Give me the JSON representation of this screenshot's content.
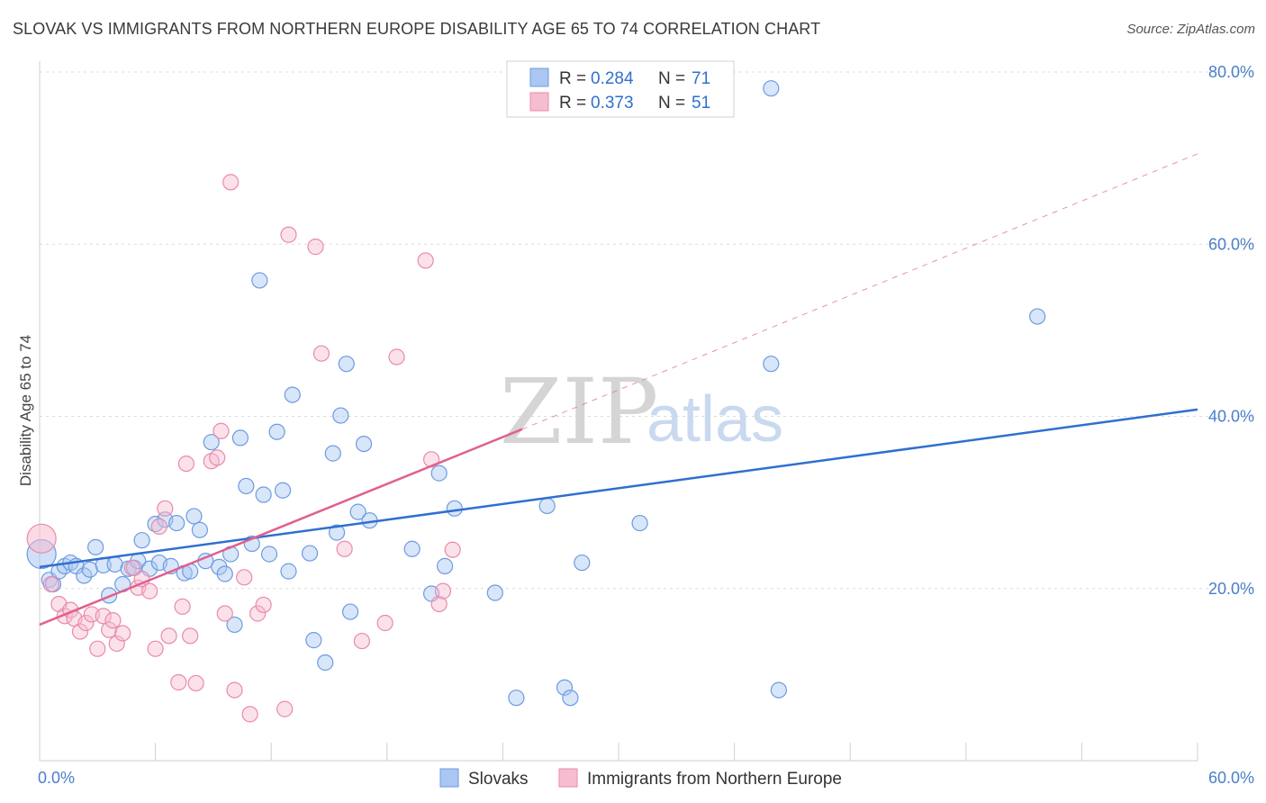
{
  "title": "SLOVAK VS IMMIGRANTS FROM NORTHERN EUROPE DISABILITY AGE 65 TO 74 CORRELATION CHART",
  "source": "Source: ZipAtlas.com",
  "watermark": {
    "zip": "ZIP",
    "atlas": "atlas"
  },
  "colors": {
    "blue_fill": "#a9c7f2",
    "blue_stroke": "#6d9be0",
    "blue_line": "#2f6fcf",
    "pink_fill": "#f6bcd0",
    "pink_stroke": "#e98aac",
    "pink_line": "#e0608e",
    "tick_color": "#4a7fc9",
    "grid": "#dcdcdc"
  },
  "legend": {
    "r_label": "R =",
    "n_label": "N =",
    "rows": [
      {
        "r": "0.284",
        "n": "71",
        "color": "blue"
      },
      {
        "r": "0.373",
        "n": "51",
        "color": "pink"
      }
    ]
  },
  "bottom_legend": [
    "Slovaks",
    "Immigrants from Northern Europe"
  ],
  "chart_data": {
    "type": "scatter",
    "title": "SLOVAK VS IMMIGRANTS FROM NORTHERN EUROPE DISABILITY AGE 65 TO 74 CORRELATION CHART",
    "xlabel": "",
    "ylabel": "Disability Age 65 to 74",
    "xlim": [
      0,
      60
    ],
    "ylim": [
      0,
      80
    ],
    "x_tick_labels": [
      "0.0%",
      "60.0%"
    ],
    "y_ticks": [
      20,
      40,
      60,
      80
    ],
    "y_tick_labels": [
      "20.0%",
      "40.0%",
      "60.0%",
      "80.0%"
    ],
    "grid": "horizontal dashed",
    "legend_position": "top-center",
    "series": [
      {
        "name": "Slovaks",
        "color": "blue",
        "trend": {
          "x": [
            0,
            60
          ],
          "y": [
            22.5,
            40.8
          ],
          "style": "solid"
        },
        "points": [
          [
            0.1,
            24.0
          ],
          [
            0.5,
            21.0
          ],
          [
            0.7,
            20.5
          ],
          [
            1.0,
            22.0
          ],
          [
            1.3,
            22.6
          ],
          [
            1.6,
            23.0
          ],
          [
            1.9,
            22.6
          ],
          [
            2.3,
            21.5
          ],
          [
            2.6,
            22.2
          ],
          [
            2.9,
            24.8
          ],
          [
            3.3,
            22.7
          ],
          [
            3.6,
            19.2
          ],
          [
            3.9,
            22.8
          ],
          [
            4.3,
            20.5
          ],
          [
            4.6,
            22.3
          ],
          [
            4.9,
            22.4
          ],
          [
            5.1,
            23.2
          ],
          [
            5.3,
            25.6
          ],
          [
            5.7,
            22.3
          ],
          [
            6.0,
            27.5
          ],
          [
            6.2,
            23.0
          ],
          [
            6.5,
            28.0
          ],
          [
            6.8,
            22.6
          ],
          [
            7.1,
            27.6
          ],
          [
            7.5,
            21.8
          ],
          [
            7.8,
            22.0
          ],
          [
            8.0,
            28.4
          ],
          [
            8.3,
            26.8
          ],
          [
            8.6,
            23.2
          ],
          [
            8.9,
            37.0
          ],
          [
            9.3,
            22.5
          ],
          [
            9.6,
            21.7
          ],
          [
            9.9,
            24.0
          ],
          [
            10.1,
            15.8
          ],
          [
            10.4,
            37.5
          ],
          [
            10.7,
            31.9
          ],
          [
            11.0,
            25.2
          ],
          [
            11.4,
            55.8
          ],
          [
            11.6,
            30.9
          ],
          [
            11.9,
            24.0
          ],
          [
            12.3,
            38.2
          ],
          [
            12.6,
            31.4
          ],
          [
            12.9,
            22.0
          ],
          [
            13.1,
            42.5
          ],
          [
            14.0,
            24.1
          ],
          [
            14.2,
            14.0
          ],
          [
            14.8,
            11.4
          ],
          [
            15.2,
            35.7
          ],
          [
            15.4,
            26.5
          ],
          [
            15.6,
            40.1
          ],
          [
            15.9,
            46.1
          ],
          [
            16.1,
            17.3
          ],
          [
            16.5,
            28.9
          ],
          [
            16.8,
            36.8
          ],
          [
            17.1,
            27.9
          ],
          [
            19.3,
            24.6
          ],
          [
            20.3,
            19.4
          ],
          [
            20.7,
            33.4
          ],
          [
            21.0,
            22.6
          ],
          [
            21.5,
            29.3
          ],
          [
            23.6,
            19.5
          ],
          [
            24.7,
            7.3
          ],
          [
            26.3,
            29.6
          ],
          [
            27.2,
            8.5
          ],
          [
            27.5,
            7.3
          ],
          [
            28.1,
            23.0
          ],
          [
            31.1,
            27.6
          ],
          [
            37.9,
            46.1
          ],
          [
            37.9,
            78.1
          ],
          [
            38.3,
            8.2
          ],
          [
            51.7,
            51.6
          ]
        ]
      },
      {
        "name": "Immigrants from Northern Europe",
        "color": "pink",
        "trend": {
          "x": [
            0,
            25
          ],
          "y": [
            15.8,
            38.5
          ],
          "style": "solid",
          "extended": {
            "x": [
              25,
              60
            ],
            "y": [
              38.5,
              70.5
            ],
            "style": "dashed"
          }
        },
        "points": [
          [
            0.1,
            25.8
          ],
          [
            0.6,
            20.5
          ],
          [
            1.0,
            18.2
          ],
          [
            1.3,
            16.8
          ],
          [
            1.6,
            17.5
          ],
          [
            1.8,
            16.5
          ],
          [
            2.1,
            15.0
          ],
          [
            2.4,
            16.0
          ],
          [
            2.7,
            17.0
          ],
          [
            3.0,
            13.0
          ],
          [
            3.3,
            16.8
          ],
          [
            3.6,
            15.2
          ],
          [
            3.8,
            16.3
          ],
          [
            4.0,
            13.6
          ],
          [
            4.3,
            14.8
          ],
          [
            4.8,
            22.4
          ],
          [
            5.1,
            20.1
          ],
          [
            5.3,
            21.1
          ],
          [
            5.7,
            19.7
          ],
          [
            6.0,
            13.0
          ],
          [
            6.2,
            27.2
          ],
          [
            6.5,
            29.3
          ],
          [
            6.7,
            14.5
          ],
          [
            7.2,
            9.1
          ],
          [
            7.4,
            17.9
          ],
          [
            7.6,
            34.5
          ],
          [
            7.8,
            14.5
          ],
          [
            8.1,
            9.0
          ],
          [
            8.9,
            34.8
          ],
          [
            9.2,
            35.2
          ],
          [
            9.4,
            38.3
          ],
          [
            9.6,
            17.1
          ],
          [
            9.9,
            67.2
          ],
          [
            10.1,
            8.2
          ],
          [
            10.6,
            21.3
          ],
          [
            10.9,
            5.4
          ],
          [
            11.3,
            17.1
          ],
          [
            11.6,
            18.1
          ],
          [
            12.7,
            6.0
          ],
          [
            12.9,
            61.1
          ],
          [
            14.3,
            59.7
          ],
          [
            14.6,
            47.3
          ],
          [
            15.8,
            24.6
          ],
          [
            16.7,
            13.9
          ],
          [
            17.9,
            16.0
          ],
          [
            18.5,
            46.9
          ],
          [
            20.0,
            58.1
          ],
          [
            20.3,
            35.0
          ],
          [
            20.7,
            18.2
          ],
          [
            20.9,
            19.7
          ],
          [
            21.4,
            24.5
          ]
        ]
      }
    ]
  }
}
